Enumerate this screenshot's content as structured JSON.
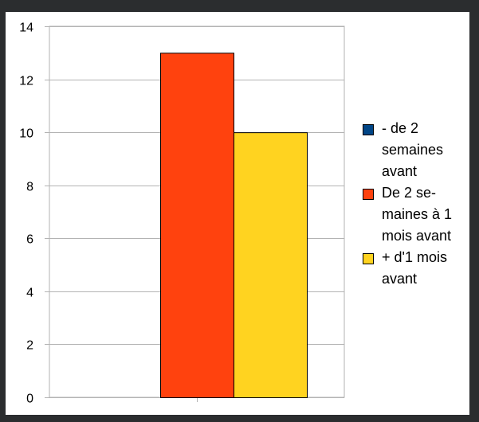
{
  "chart_data": {
    "type": "bar",
    "title": "",
    "xlabel": "",
    "ylabel": "",
    "categories": [
      ""
    ],
    "series": [
      {
        "name": "- de 2\nsemaines\navant",
        "values": [
          0
        ],
        "color": "#004586"
      },
      {
        "name": "De 2 se-\nmaines à 1\nmois avant",
        "values": [
          13
        ],
        "color": "#ff420e"
      },
      {
        "name": "+ d'1 mois\navant",
        "values": [
          10
        ],
        "color": "#ffd320"
      }
    ],
    "ylim": [
      0,
      14
    ],
    "yticks": [
      0,
      2,
      4,
      6,
      8,
      10,
      12,
      14
    ],
    "grid": true,
    "legend_position": "right"
  }
}
